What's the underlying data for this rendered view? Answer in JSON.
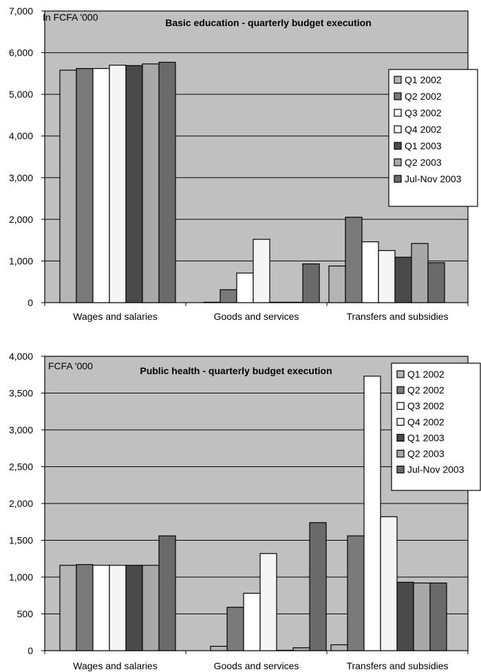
{
  "chart_data": [
    {
      "type": "bar",
      "title": "Basic education - quarterly budget execution",
      "unit_label": "In FCFA '000",
      "categories": [
        "Wages and salaries",
        "Goods and services",
        "Transfers and subsidies"
      ],
      "series": [
        {
          "name": "Q1 2002",
          "color": "#b4b4b4",
          "values": [
            5580,
            10,
            880
          ]
        },
        {
          "name": "Q2 2002",
          "color": "#7a7a7a",
          "values": [
            5620,
            310,
            2050
          ]
        },
        {
          "name": "Q3 2002",
          "color": "#ffffff",
          "values": [
            5620,
            710,
            1460
          ]
        },
        {
          "name": "Q4 2002",
          "color": "#f5f5f5",
          "values": [
            5700,
            1520,
            1250
          ]
        },
        {
          "name": "Q1 2003",
          "color": "#4a4a4a",
          "values": [
            5690,
            10,
            1090
          ]
        },
        {
          "name": "Q2 2003",
          "color": "#a8a8a8",
          "values": [
            5730,
            10,
            1420
          ]
        },
        {
          "name": "Jul-Nov 2003",
          "color": "#6a6a6a",
          "values": [
            5770,
            930,
            960
          ]
        }
      ],
      "ylim": [
        0,
        7000
      ],
      "yticks": [
        "0",
        "1,000",
        "2,000",
        "3,000",
        "4,000",
        "5,000",
        "6,000",
        "7,000"
      ],
      "grid": true,
      "legend_position": "right"
    },
    {
      "type": "bar",
      "title": "Public health - quarterly budget execution",
      "unit_label": "FCFA '000",
      "categories": [
        "Wages and salaries",
        "Goods and services",
        "Transfers and subsidies"
      ],
      "series": [
        {
          "name": "Q1 2002",
          "color": "#b4b4b4",
          "values": [
            1160,
            60,
            80
          ]
        },
        {
          "name": "Q2 2002",
          "color": "#7a7a7a",
          "values": [
            1170,
            590,
            1560
          ]
        },
        {
          "name": "Q3 2002",
          "color": "#ffffff",
          "values": [
            1160,
            780,
            3730
          ]
        },
        {
          "name": "Q4 2002",
          "color": "#f5f5f5",
          "values": [
            1160,
            1320,
            1820
          ]
        },
        {
          "name": "Q1 2003",
          "color": "#4a4a4a",
          "values": [
            1160,
            5,
            930
          ]
        },
        {
          "name": "Q2 2003",
          "color": "#a8a8a8",
          "values": [
            1160,
            40,
            920
          ]
        },
        {
          "name": "Jul-Nov 2003",
          "color": "#6a6a6a",
          "values": [
            1560,
            1740,
            920
          ]
        }
      ],
      "ylim": [
        0,
        4000
      ],
      "yticks": [
        "0",
        "500",
        "1,000",
        "1,500",
        "2,000",
        "2,500",
        "3,000",
        "3,500",
        "4,000"
      ],
      "grid": true,
      "legend_position": "top-right"
    }
  ]
}
